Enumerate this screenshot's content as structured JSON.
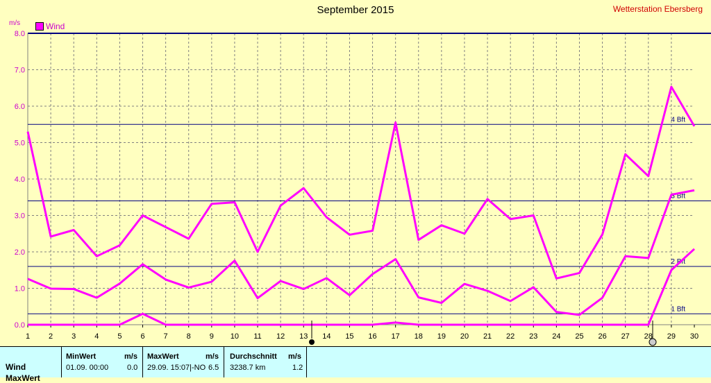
{
  "chart_data": {
    "type": "line",
    "title": "September 2015",
    "station": "Wetterstation Ebersberg",
    "ylabel": "m/s",
    "ylim": [
      0,
      8
    ],
    "yticks": [
      "0.0",
      "1.0",
      "2.0",
      "3.0",
      "4.0",
      "5.0",
      "6.0",
      "7.0",
      "8.0"
    ],
    "x": [
      1,
      2,
      3,
      4,
      5,
      6,
      7,
      8,
      9,
      10,
      11,
      12,
      13,
      14,
      15,
      16,
      17,
      18,
      19,
      20,
      21,
      22,
      23,
      24,
      25,
      26,
      27,
      28,
      29,
      30
    ],
    "legend": "Wind",
    "series": [
      {
        "values": [
          5.3,
          2.42,
          2.6,
          1.88,
          2.18,
          3.0,
          2.68,
          2.36,
          3.32,
          3.36,
          2.0,
          3.27,
          3.75,
          2.95,
          2.47,
          2.58,
          5.55,
          2.33,
          2.73,
          2.5,
          3.45,
          2.9,
          3.0,
          1.27,
          1.42,
          2.48,
          4.68,
          4.08,
          6.53,
          5.45
        ]
      },
      {
        "values": [
          1.26,
          0.99,
          0.98,
          0.74,
          1.13,
          1.66,
          1.24,
          1.02,
          1.18,
          1.76,
          0.73,
          1.2,
          0.98,
          1.28,
          0.81,
          1.39,
          1.8,
          0.75,
          0.6,
          1.12,
          0.93,
          0.65,
          1.03,
          0.35,
          0.27,
          0.74,
          1.88,
          1.83,
          3.57,
          3.69
        ]
      },
      {
        "values": [
          0,
          0,
          0,
          0,
          0,
          0.3,
          0,
          0,
          0,
          0,
          0,
          0,
          0,
          0,
          0,
          0,
          0.06,
          0,
          0,
          0,
          0,
          0,
          0,
          0,
          0,
          0,
          0,
          0,
          1.5,
          2.08
        ]
      }
    ],
    "reference_lines": [
      {
        "label": "1 Bft",
        "value": 0.3
      },
      {
        "label": "2 Bft",
        "value": 1.6
      },
      {
        "label": "3 Bft",
        "value": 3.4
      },
      {
        "label": "4 Bft",
        "value": 5.5
      }
    ]
  },
  "stats": {
    "row_label": "Wind",
    "row_label2": "MaxWert",
    "min_header": "MinWert",
    "min_unit": "m/s",
    "min_date": "01.09.  00:00",
    "min_value": "0.0",
    "max_header": "MaxWert",
    "max_unit": "m/s",
    "max_date": "29.09.  15:07|-NO",
    "max_value": "6.5",
    "avg_header": "Durchschnitt",
    "avg_unit": "m/s",
    "avg_distance": "3238.7 km",
    "avg_value": "1.2"
  }
}
